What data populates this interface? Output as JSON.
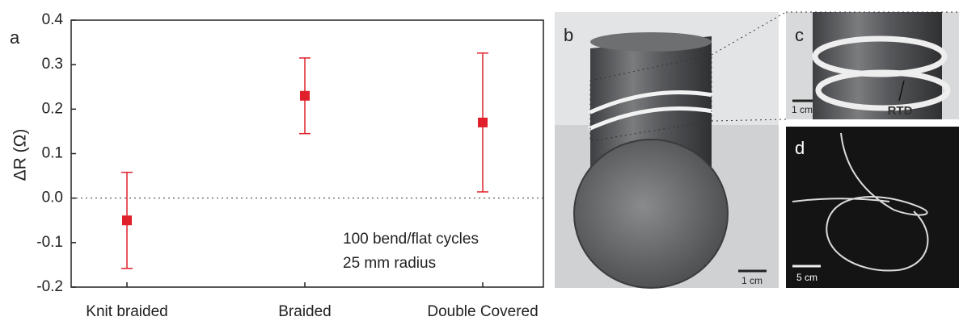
{
  "chart_data": {
    "type": "errorbar",
    "panel_label": "a",
    "y_label": "ΔR (Ω)",
    "categories": [
      "Knit braided",
      "Braided",
      "Double Covered"
    ],
    "values": [
      -0.05,
      0.23,
      0.17
    ],
    "errors": [
      0.108,
      0.085,
      0.156
    ],
    "color": "#e0202a",
    "ylim": [
      -0.2,
      0.4
    ],
    "yticks": [
      -0.2,
      -0.1,
      {
        "value": 0,
        "label": "0.0"
      },
      0.1,
      0.2,
      0.3,
      0.4
    ],
    "reference_line": 0,
    "annotations": [
      "100 bend/flat cycles",
      "25 mm radius"
    ]
  },
  "photos": {
    "b": {
      "label": "b",
      "scale": "1 cm"
    },
    "c": {
      "label": "c",
      "scale": "1 cm",
      "annotation": "RTD"
    },
    "d": {
      "label": "d",
      "scale": "5 cm"
    }
  }
}
